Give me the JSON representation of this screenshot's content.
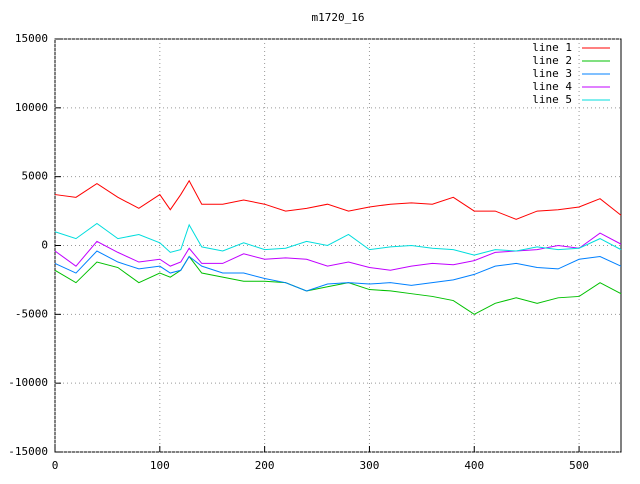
{
  "chart_data": {
    "type": "line",
    "title": "m1720_16",
    "x": [
      0,
      20,
      40,
      60,
      80,
      100,
      110,
      120,
      128,
      140,
      160,
      180,
      200,
      220,
      240,
      260,
      280,
      300,
      320,
      340,
      360,
      380,
      400,
      420,
      440,
      460,
      480,
      500,
      520,
      540
    ],
    "series": [
      {
        "name": "line 1",
        "color": "#ff0000",
        "values": [
          3700,
          3500,
          4500,
          3500,
          2700,
          3700,
          2600,
          3700,
          4700,
          3000,
          3000,
          3300,
          3000,
          2500,
          2700,
          3000,
          2500,
          2800,
          3000,
          3100,
          3000,
          3500,
          2500,
          2500,
          1900,
          2500,
          2600,
          2800,
          3400,
          2200
        ]
      },
      {
        "name": "line 2",
        "color": "#00c000",
        "values": [
          -1800,
          -2700,
          -1200,
          -1600,
          -2700,
          -2000,
          -2300,
          -1800,
          -800,
          -2000,
          -2300,
          -2600,
          -2600,
          -2700,
          -3300,
          -3000,
          -2700,
          -3200,
          -3300,
          -3500,
          -3700,
          -4000,
          -5000,
          -4200,
          -3800,
          -4200,
          -3800,
          -3700,
          -2700,
          -3500
        ]
      },
      {
        "name": "line 3",
        "color": "#0080ff",
        "values": [
          -1300,
          -2000,
          -400,
          -1200,
          -1700,
          -1500,
          -2000,
          -1800,
          -800,
          -1500,
          -2000,
          -2000,
          -2400,
          -2700,
          -3300,
          -2800,
          -2700,
          -2800,
          -2700,
          -2900,
          -2700,
          -2500,
          -2100,
          -1500,
          -1300,
          -1600,
          -1700,
          -1000,
          -800,
          -1500
        ]
      },
      {
        "name": "line 4",
        "color": "#c000ff",
        "values": [
          -400,
          -1500,
          300,
          -500,
          -1200,
          -1000,
          -1500,
          -1200,
          -200,
          -1300,
          -1300,
          -600,
          -1000,
          -900,
          -1000,
          -1500,
          -1200,
          -1600,
          -1800,
          -1500,
          -1300,
          -1400,
          -1100,
          -500,
          -400,
          -300,
          0,
          -200,
          900,
          100
        ]
      },
      {
        "name": "line 5",
        "color": "#00dddd",
        "values": [
          1000,
          500,
          1600,
          500,
          800,
          200,
          -500,
          -300,
          1500,
          -100,
          -400,
          200,
          -300,
          -200,
          300,
          0,
          800,
          -300,
          -100,
          0,
          -200,
          -300,
          -700,
          -300,
          -400,
          -100,
          -300,
          -200,
          500,
          -300
        ]
      }
    ],
    "xlim": [
      0,
      540
    ],
    "ylim": [
      -15000,
      15000
    ],
    "xticks": [
      0,
      100,
      200,
      300,
      400,
      500
    ],
    "yticks": [
      -15000,
      -10000,
      -5000,
      0,
      5000,
      10000,
      15000
    ],
    "grid": true,
    "legend": "top-right"
  }
}
